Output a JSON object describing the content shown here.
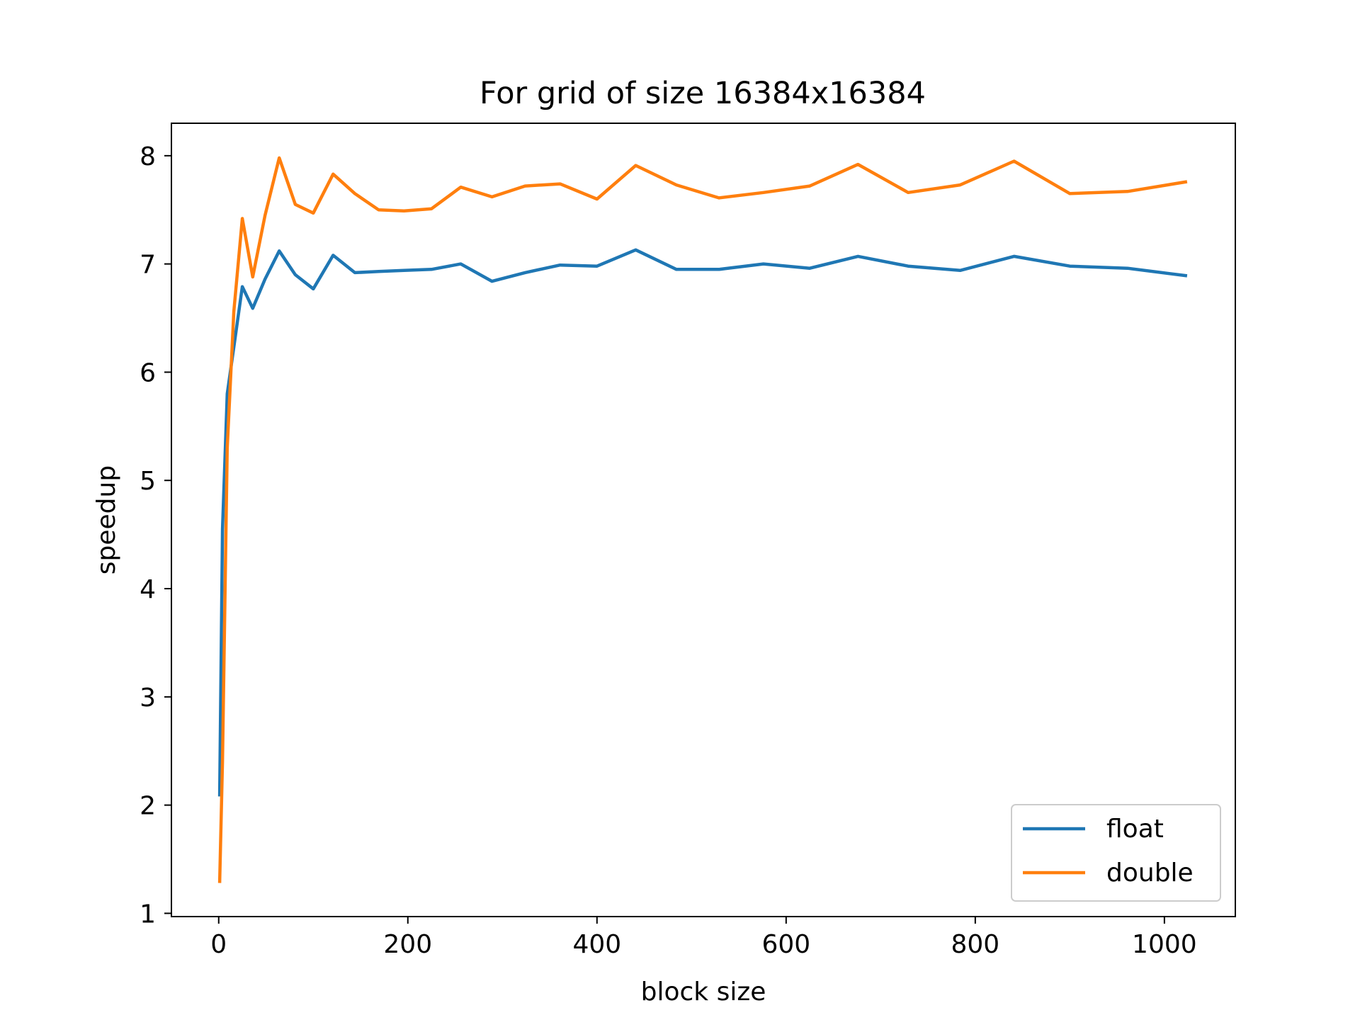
{
  "chart_data": {
    "type": "line",
    "title": "For grid of size 16384x16384",
    "xlabel": "block size",
    "ylabel": "speedup",
    "xlim": [
      -50,
      1075
    ],
    "ylim": [
      0.97,
      8.3
    ],
    "xticks": [
      0,
      200,
      400,
      600,
      800,
      1000
    ],
    "yticks": [
      1,
      2,
      3,
      4,
      5,
      6,
      7,
      8
    ],
    "grid": false,
    "legend_position": "lower right",
    "x": [
      1,
      4,
      9,
      16,
      25,
      36,
      49,
      64,
      81,
      100,
      121,
      144,
      169,
      196,
      225,
      256,
      289,
      324,
      361,
      400,
      441,
      484,
      529,
      576,
      625,
      676,
      729,
      784,
      841,
      900,
      961,
      1024
    ],
    "series": [
      {
        "name": "float",
        "color": "#1f77b4",
        "values": [
          2.08,
          4.55,
          5.8,
          6.23,
          6.79,
          6.59,
          6.86,
          7.12,
          6.9,
          6.77,
          7.08,
          6.92,
          6.93,
          6.94,
          6.95,
          7.0,
          6.84,
          6.92,
          6.99,
          6.98,
          7.13,
          6.95,
          6.95,
          7.0,
          6.96,
          7.07,
          6.98,
          6.94,
          7.07,
          6.98,
          6.96,
          6.89
        ]
      },
      {
        "name": "double",
        "color": "#ff7f0e",
        "values": [
          1.28,
          2.4,
          5.3,
          6.56,
          7.42,
          6.88,
          7.45,
          7.98,
          7.55,
          7.47,
          7.83,
          7.65,
          7.5,
          7.49,
          7.51,
          7.71,
          7.62,
          7.72,
          7.74,
          7.6,
          7.91,
          7.73,
          7.61,
          7.66,
          7.72,
          7.92,
          7.66,
          7.73,
          7.95,
          7.65,
          7.67,
          7.76
        ]
      }
    ]
  }
}
